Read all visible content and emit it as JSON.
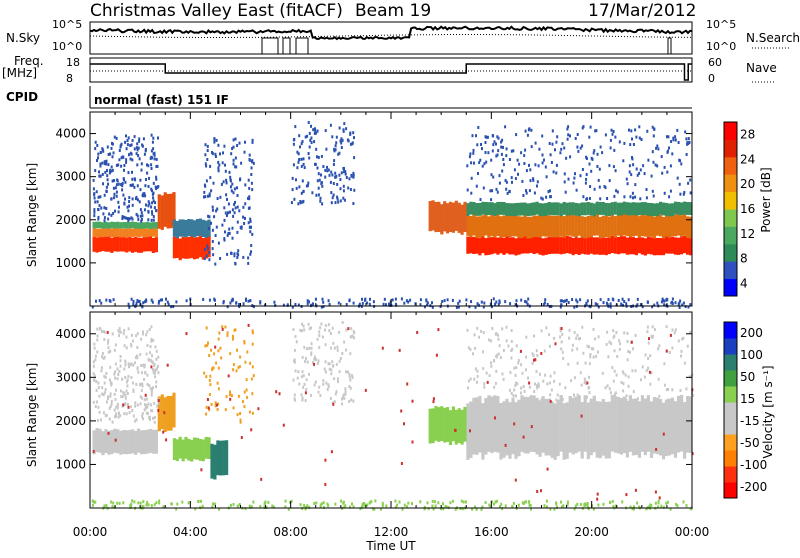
{
  "header": {
    "title_left": "Christmas Valley East (fitACF)",
    "title_mid": "Beam 19",
    "title_right": "17/Mar/2012"
  },
  "strips": {
    "nsky": {
      "label": "N.Sky",
      "ticks": [
        "10^5",
        "10^0"
      ],
      "right_label": "N.Search",
      "right_ticks": [
        "10^5",
        "10^0"
      ]
    },
    "freq": {
      "label_line1": "Freq.",
      "label_line2": "[MHz]",
      "ticks": [
        "18",
        "8"
      ],
      "right_label": "Nave",
      "right_ticks": [
        "60",
        "0"
      ]
    },
    "cpid": {
      "label": "CPID",
      "value": "normal (fast) 151 IF"
    }
  },
  "chart_data": [
    {
      "type": "heatmap",
      "name": "power",
      "ylabel": "Slant Range [km]",
      "yticks": [
        "4000",
        "3000",
        "2000",
        "1000"
      ],
      "ylim": [
        0,
        4500
      ],
      "xlim": [
        0,
        24
      ],
      "colorbar": {
        "label": "Power [dB]",
        "ticks": [
          "28",
          "24",
          "20",
          "16",
          "12",
          "8",
          "4"
        ],
        "range": [
          0,
          30
        ],
        "colors": [
          "#0000ff",
          "#3050c0",
          "#2e8b57",
          "#4aa860",
          "#7ec850",
          "#f0c000",
          "#f09010",
          "#f06010",
          "#e02000",
          "#ff0000"
        ]
      },
      "bands": [
        {
          "x0": 0.1,
          "x1": 2.7,
          "r0": 1250,
          "r1": 1600,
          "color": "#ff2a00"
        },
        {
          "x0": 0.1,
          "x1": 2.7,
          "r0": 1600,
          "r1": 1800,
          "color": "#f08020"
        },
        {
          "x0": 0.1,
          "x1": 2.7,
          "r0": 1800,
          "r1": 1950,
          "color": "#4aa860"
        },
        {
          "x0": 2.7,
          "x1": 3.4,
          "r0": 1800,
          "r1": 2600,
          "color": "#e85010"
        },
        {
          "x0": 3.3,
          "x1": 4.8,
          "r0": 1100,
          "r1": 1600,
          "color": "#ff3000"
        },
        {
          "x0": 3.3,
          "x1": 4.8,
          "r0": 1600,
          "r1": 2000,
          "color": "#3a7a9a"
        },
        {
          "x0": 15.0,
          "x1": 24.0,
          "r0": 1200,
          "r1": 1600,
          "color": "#ff2000"
        },
        {
          "x0": 15.0,
          "x1": 24.0,
          "r0": 1600,
          "r1": 2100,
          "color": "#e07010"
        },
        {
          "x0": 15.0,
          "x1": 24.0,
          "r0": 2100,
          "r1": 2400,
          "color": "#3a8f60"
        },
        {
          "x0": 13.5,
          "x1": 15.0,
          "r0": 1700,
          "r1": 2400,
          "color": "#e06020"
        }
      ],
      "scatter_clouds": [
        {
          "x0": 0.1,
          "x1": 2.7,
          "r0": 2000,
          "r1": 4000,
          "color": "#2a50b0",
          "n": 260
        },
        {
          "x0": 4.5,
          "x1": 6.5,
          "r0": 1000,
          "r1": 4000,
          "color": "#2a50b0",
          "n": 180
        },
        {
          "x0": 8.0,
          "x1": 10.5,
          "r0": 2400,
          "r1": 4300,
          "color": "#2a50b0",
          "n": 160
        },
        {
          "x0": 15.0,
          "x1": 24.0,
          "r0": 2500,
          "r1": 4200,
          "color": "#2a50b0",
          "n": 300
        },
        {
          "x0": 0.0,
          "x1": 24.0,
          "r0": 0,
          "r1": 200,
          "color": "#2a50b0",
          "n": 260
        }
      ]
    },
    {
      "type": "heatmap",
      "name": "velocity",
      "ylabel": "Slant Range [km]",
      "yticks": [
        "4000",
        "3000",
        "2000",
        "1000"
      ],
      "ylim": [
        0,
        4500
      ],
      "xlim": [
        0,
        24
      ],
      "xlabel": "Time UT",
      "xticks": [
        "00:00",
        "04:00",
        "08:00",
        "12:00",
        "16:00",
        "20:00",
        "00:00"
      ],
      "colorbar": {
        "label": "Velocity [m s⁻¹]",
        "ticks": [
          "200",
          "100",
          "50",
          "15",
          "-15",
          "-50",
          "-100",
          "-200"
        ],
        "range": [
          -250,
          250
        ],
        "colors": [
          "#ff0000",
          "#ff3010",
          "#ff8000",
          "#ffa020",
          "#c8c8c8",
          "#c8c8c8",
          "#8ad050",
          "#40a040",
          "#2a7f70",
          "#1a40c0",
          "#0000ff"
        ]
      },
      "bands": [
        {
          "x0": 0.1,
          "x1": 2.7,
          "r0": 1250,
          "r1": 1800,
          "color": "#c8c8c8"
        },
        {
          "x0": 2.7,
          "x1": 3.4,
          "r0": 1800,
          "r1": 2600,
          "color": "#f0a020"
        },
        {
          "x0": 3.3,
          "x1": 4.8,
          "r0": 1100,
          "r1": 1600,
          "color": "#8ad050"
        },
        {
          "x0": 4.8,
          "x1": 5.5,
          "r0": 700,
          "r1": 1500,
          "color": "#2a7f70"
        },
        {
          "x0": 15.0,
          "x1": 24.0,
          "r0": 1200,
          "r1": 2500,
          "color": "#c8c8c8"
        },
        {
          "x0": 13.5,
          "x1": 15.0,
          "r0": 1500,
          "r1": 2300,
          "color": "#8ad050"
        }
      ],
      "scatter_clouds": [
        {
          "x0": 0.1,
          "x1": 2.7,
          "r0": 2000,
          "r1": 4200,
          "color": "#c8c8c8",
          "n": 260
        },
        {
          "x0": 4.5,
          "x1": 6.5,
          "r0": 2000,
          "r1": 4200,
          "color": "#f0a020",
          "n": 80
        },
        {
          "x0": 8.0,
          "x1": 10.5,
          "r0": 2400,
          "r1": 4300,
          "color": "#c8c8c8",
          "n": 140
        },
        {
          "x0": 15.0,
          "x1": 24.0,
          "r0": 2500,
          "r1": 4200,
          "color": "#c8c8c8",
          "n": 280
        },
        {
          "x0": 0.0,
          "x1": 24.0,
          "r0": 0,
          "r1": 200,
          "color": "#8ad050",
          "n": 260
        },
        {
          "x0": 0.0,
          "x1": 24.0,
          "r0": 200,
          "r1": 4300,
          "color": "#cc3030",
          "n": 90
        }
      ]
    }
  ]
}
